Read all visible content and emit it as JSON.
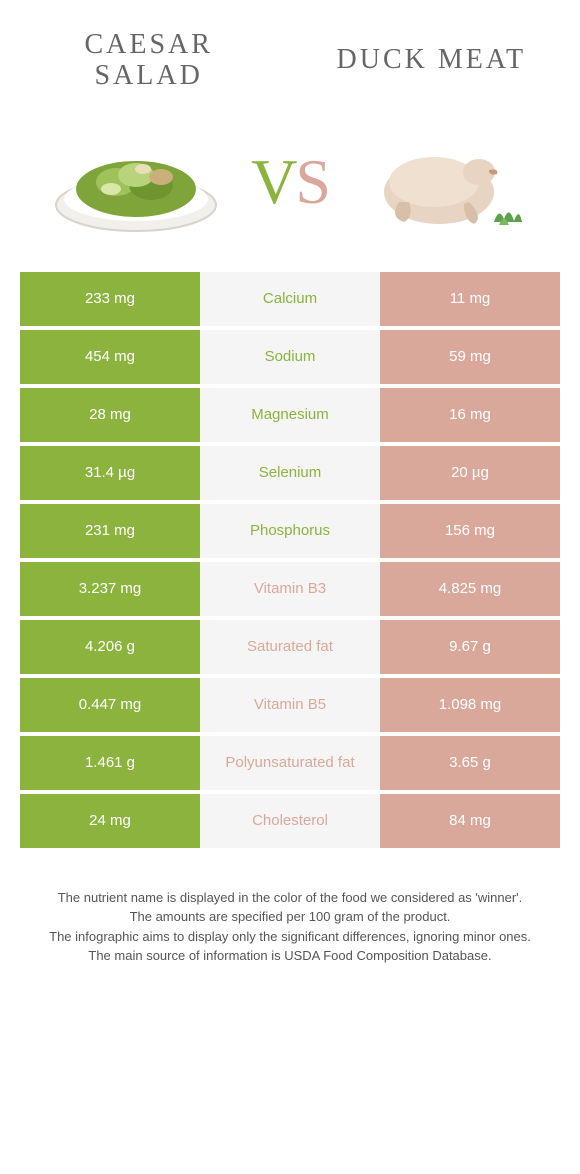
{
  "colors": {
    "green": "#8bb33e",
    "beige": "#d9a89a",
    "mid_bg": "#f5f5f5",
    "text": "#555555",
    "title": "#666666"
  },
  "header": {
    "left_title": "CAESAR SALAD",
    "right_title": "DUCK MEAT",
    "vs": "VS"
  },
  "rows": [
    {
      "left": "233 mg",
      "label": "Calcium",
      "right": "11 mg",
      "winner": "left"
    },
    {
      "left": "454 mg",
      "label": "Sodium",
      "right": "59 mg",
      "winner": "left"
    },
    {
      "left": "28 mg",
      "label": "Magnesium",
      "right": "16 mg",
      "winner": "left"
    },
    {
      "left": "31.4 µg",
      "label": "Selenium",
      "right": "20 µg",
      "winner": "left"
    },
    {
      "left": "231 mg",
      "label": "Phosphorus",
      "right": "156 mg",
      "winner": "left"
    },
    {
      "left": "3.237 mg",
      "label": "Vitamin B3",
      "right": "4.825 mg",
      "winner": "right"
    },
    {
      "left": "4.206 g",
      "label": "Saturated fat",
      "right": "9.67 g",
      "winner": "right"
    },
    {
      "left": "0.447 mg",
      "label": "Vitamin B5",
      "right": "1.098 mg",
      "winner": "right"
    },
    {
      "left": "1.461 g",
      "label": "Polyunsaturated fat",
      "right": "3.65 g",
      "winner": "right"
    },
    {
      "left": "24 mg",
      "label": "Cholesterol",
      "right": "84 mg",
      "winner": "right"
    }
  ],
  "footer": {
    "line1": "The nutrient name is displayed in the color of the food we considered as 'winner'.",
    "line2": "The amounts are specified per 100 gram of the product.",
    "line3": "The infographic aims to display only the significant differences, ignoring minor ones.",
    "line4": "The main source of information is USDA Food Composition Database."
  }
}
